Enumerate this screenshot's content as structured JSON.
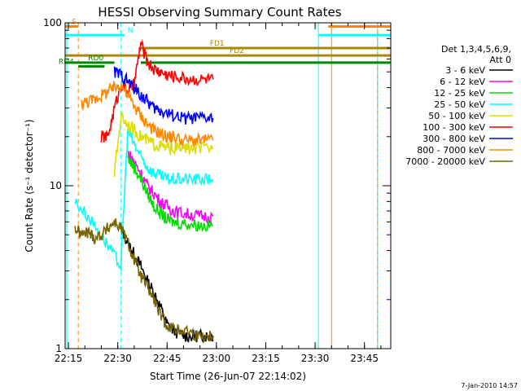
{
  "chart_data": {
    "type": "line",
    "title": "HESSI Observing Summary Count Rates",
    "xlabel": "Start Time (26-Jun-07 22:14:02)",
    "ylabel": "Count Rate (s⁻¹ detector⁻¹)",
    "y_scale": "log",
    "ylim": [
      1,
      100
    ],
    "xlim": [
      "22:14",
      "23:53"
    ],
    "x_ticks": [
      "22:15",
      "22:30",
      "22:45",
      "23:00",
      "23:15",
      "23:30",
      "23:45"
    ],
    "y_ticks": [
      "1",
      "10",
      "100"
    ],
    "legend_position": "right",
    "legend_header": [
      "Det 1,3,4,5,6,9,",
      "Att 0"
    ],
    "timestamp": "7-Jan-2010 14:57",
    "series": [
      {
        "name": "3 - 6 keV",
        "color": "#000000",
        "x": [
          "22:31",
          "22:33",
          "22:35",
          "22:37",
          "22:39",
          "22:41",
          "22:43",
          "22:45",
          "22:47",
          "22:50",
          "22:53",
          "22:55",
          "22:57",
          "22:59"
        ],
        "values": [
          5.5,
          4.5,
          3.8,
          3.2,
          2.6,
          2.2,
          1.8,
          1.4,
          1.3,
          1.2,
          1.2,
          1.2,
          1.2,
          1.2
        ]
      },
      {
        "name": "6 - 12 keV",
        "color": "#ff00ff",
        "x": [
          "22:33",
          "22:35",
          "22:37",
          "22:39",
          "22:41",
          "22:43",
          "22:45",
          "22:47",
          "22:50",
          "22:53",
          "22:56",
          "22:59"
        ],
        "values": [
          16,
          14,
          12,
          10,
          9,
          8,
          7.5,
          7,
          6.8,
          6.6,
          6.5,
          6.5
        ]
      },
      {
        "name": "12 - 25 keV",
        "color": "#00dd00",
        "x": [
          "22:33",
          "22:35",
          "22:37",
          "22:39",
          "22:41",
          "22:43",
          "22:45",
          "22:47",
          "22:50",
          "22:53",
          "22:56",
          "22:59"
        ],
        "values": [
          15,
          13,
          11,
          9,
          7.5,
          6.8,
          6.2,
          6,
          5.9,
          5.8,
          5.7,
          5.7
        ]
      },
      {
        "name": "25 - 50 keV",
        "color": "#00ffff",
        "x": [
          "22:17",
          "22:21",
          "22:25",
          "22:28",
          "22:31",
          "22:33",
          "22:35",
          "22:37",
          "22:39",
          "22:41",
          "22:43",
          "22:45",
          "22:47",
          "22:50",
          "22:53",
          "22:56",
          "22:59"
        ],
        "values": [
          8,
          6.5,
          5,
          4,
          3.2,
          22,
          18,
          15,
          13,
          12,
          11.5,
          11,
          11,
          11,
          11,
          11,
          11
        ]
      },
      {
        "name": "50 - 100 keV",
        "color": "#dddd00",
        "x": [
          "22:29",
          "22:31",
          "22:33",
          "22:35",
          "22:37",
          "22:39",
          "22:41",
          "22:43",
          "22:45",
          "22:47",
          "22:50",
          "22:53",
          "22:56",
          "22:59"
        ],
        "values": [
          12,
          27,
          24,
          22,
          20,
          19,
          18,
          17.5,
          17,
          17,
          17,
          17,
          17,
          17
        ]
      },
      {
        "name": "100 - 300 keV",
        "color": "#ff0000",
        "x": [
          "22:25",
          "22:27",
          "22:29",
          "22:31",
          "22:33",
          "22:35",
          "22:37",
          "22:39",
          "22:41",
          "22:43",
          "22:45",
          "22:47",
          "22:50",
          "22:53",
          "22:56",
          "22:59"
        ],
        "values": [
          20,
          20,
          30,
          42,
          38,
          42,
          75,
          58,
          52,
          50,
          48,
          47,
          46,
          45,
          45,
          45
        ]
      },
      {
        "name": "300 - 800 keV",
        "color": "#0000ff",
        "x": [
          "22:29",
          "22:31",
          "22:33",
          "22:35",
          "22:37",
          "22:39",
          "22:41",
          "22:43",
          "22:45",
          "22:47",
          "22:50",
          "22:53",
          "22:56",
          "22:59"
        ],
        "values": [
          50,
          48,
          44,
          40,
          36,
          33,
          30,
          29,
          28,
          27,
          26,
          26,
          26,
          26
        ]
      },
      {
        "name": "800 - 7000 keV",
        "color": "#ff8800",
        "x": [
          "22:19",
          "22:21",
          "22:23",
          "22:25",
          "22:27",
          "22:29",
          "22:31",
          "22:33",
          "22:35",
          "22:37",
          "22:39",
          "22:41",
          "22:43",
          "22:45",
          "22:47",
          "22:50",
          "22:53",
          "22:56",
          "22:59"
        ],
        "values": [
          32,
          33,
          34,
          36,
          38,
          40,
          42,
          36,
          31,
          27,
          24,
          22,
          21,
          20,
          20,
          19,
          19,
          19,
          19
        ]
      },
      {
        "name": "7000 - 20000 keV",
        "color": "#776600",
        "x": [
          "22:17",
          "22:19",
          "22:21",
          "22:23",
          "22:25",
          "22:27",
          "22:29",
          "22:31",
          "22:33",
          "22:35",
          "22:37",
          "22:39",
          "22:41",
          "22:43",
          "22:45",
          "22:48",
          "22:51",
          "22:54",
          "22:57",
          "22:59"
        ],
        "values": [
          5.5,
          5.0,
          5.2,
          4.8,
          5.0,
          5.5,
          6,
          5.5,
          4.5,
          3.5,
          2.8,
          2.4,
          2.0,
          1.6,
          1.4,
          1.3,
          1.3,
          1.2,
          1.2,
          1.2
        ]
      }
    ],
    "state_bars": [
      {
        "label": "S",
        "color": "#ff8800",
        "value": 95,
        "segments": [
          [
            "22:14",
            "22:18"
          ],
          [
            "23:34",
            "23:53"
          ]
        ]
      },
      {
        "label": "N",
        "color": "#00ffff",
        "value": 84,
        "segments": [
          [
            "22:14",
            "22:32"
          ],
          [
            "23:31",
            "23:53"
          ]
        ]
      },
      {
        "label": "FD1",
        "color": "#aa8800",
        "value": 70,
        "segments": [
          [
            "22:37",
            "23:53"
          ]
        ]
      },
      {
        "label": "FD2",
        "color": "#aa8800",
        "value": 63,
        "segments": [
          [
            "22:14",
            "23:53"
          ]
        ]
      },
      {
        "label": "RD0",
        "color": "#008800",
        "value": 57,
        "segments": [
          [
            "22:14",
            "22:29"
          ],
          [
            "22:37",
            "23:53"
          ]
        ]
      },
      {
        "label": "RD4",
        "color": "#008800",
        "value": 54,
        "segments": [
          [
            "22:18",
            "22:26"
          ]
        ]
      }
    ],
    "vertical_markers": [
      {
        "x": "22:14:30",
        "color": "#00ffff",
        "style": "solid"
      },
      {
        "x": "22:18",
        "color": "#ff8800",
        "style": "dashed"
      },
      {
        "x": "22:31",
        "color": "#00ffff",
        "style": "dashed"
      },
      {
        "x": "23:31",
        "color": "#00ffff",
        "style": "solid"
      },
      {
        "x": "23:35",
        "color": "#ff8800",
        "style": "solid"
      },
      {
        "x": "23:49",
        "color": "#00ffff",
        "style": "solid"
      },
      {
        "x": "23:49",
        "color": "#ff8800",
        "style": "dashed"
      }
    ]
  }
}
